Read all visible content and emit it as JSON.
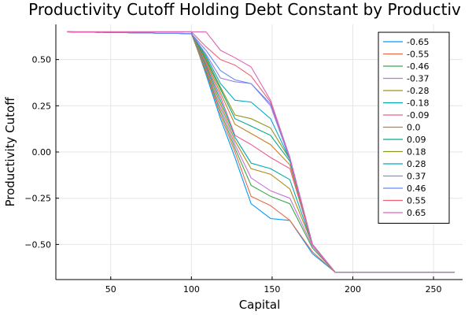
{
  "chart_data": {
    "type": "line",
    "title": "Productivity Cutoff Holding Debt Constant by Productiv",
    "xlabel": "Capital",
    "ylabel": "Productivity Cutoff",
    "xlim": [
      16,
      268
    ],
    "ylim": [
      -0.69,
      0.69
    ],
    "xticks": [
      50,
      100,
      150,
      200,
      250
    ],
    "yticks": [
      -0.5,
      -0.25,
      0.0,
      0.25,
      0.5
    ],
    "xtick_labels": [
      "50",
      "100",
      "150",
      "200",
      "250"
    ],
    "ytick_labels": [
      "−0.50",
      "−0.25",
      "0.00",
      "0.25",
      "0.50"
    ],
    "grid": true,
    "legend_position": "top-right",
    "x": [
      23,
      100,
      109,
      118,
      127,
      137,
      149,
      161,
      175,
      189,
      204,
      221,
      241,
      263
    ],
    "series": [
      {
        "name": "-0.65",
        "color": "#009AFA",
        "values": [
          0.65,
          0.65,
          0.42,
          0.18,
          -0.03,
          -0.28,
          -0.36,
          -0.37,
          -0.55,
          -0.65,
          -0.65,
          -0.65,
          -0.65,
          -0.65
        ]
      },
      {
        "name": "-0.55",
        "color": "#E36F47",
        "values": [
          0.65,
          0.64,
          0.43,
          0.2,
          0.0,
          -0.24,
          -0.29,
          -0.37,
          -0.54,
          -0.65,
          -0.65,
          -0.65,
          -0.65,
          -0.65
        ]
      },
      {
        "name": "-0.46",
        "color": "#3EA44E",
        "values": [
          0.65,
          0.64,
          0.44,
          0.22,
          0.02,
          -0.18,
          -0.24,
          -0.28,
          -0.52,
          -0.65,
          -0.65,
          -0.65,
          -0.65,
          -0.65
        ]
      },
      {
        "name": "-0.37",
        "color": "#C371D2",
        "values": [
          0.65,
          0.64,
          0.45,
          0.24,
          0.04,
          -0.14,
          -0.21,
          -0.25,
          -0.51,
          -0.65,
          -0.65,
          -0.65,
          -0.65,
          -0.65
        ]
      },
      {
        "name": "-0.28",
        "color": "#AC8D18",
        "values": [
          0.65,
          0.64,
          0.46,
          0.26,
          0.06,
          -0.09,
          -0.12,
          -0.2,
          -0.5,
          -0.65,
          -0.65,
          -0.65,
          -0.65,
          -0.65
        ]
      },
      {
        "name": "-0.18",
        "color": "#00A9AD",
        "values": [
          0.65,
          0.64,
          0.47,
          0.28,
          0.08,
          -0.06,
          -0.09,
          -0.15,
          -0.5,
          -0.65,
          -0.65,
          -0.65,
          -0.65,
          -0.65
        ]
      },
      {
        "name": "-0.09",
        "color": "#ED5E93",
        "values": [
          0.65,
          0.64,
          0.48,
          0.3,
          0.09,
          0.04,
          -0.03,
          -0.09,
          -0.5,
          -0.65,
          -0.65,
          -0.65,
          -0.65,
          -0.65
        ]
      },
      {
        "name": "0.0",
        "color": "#C68225",
        "values": [
          0.65,
          0.64,
          0.49,
          0.32,
          0.15,
          0.1,
          0.04,
          -0.07,
          -0.5,
          -0.65,
          -0.65,
          -0.65,
          -0.65,
          -0.65
        ]
      },
      {
        "name": "0.09",
        "color": "#00A98D",
        "values": [
          0.65,
          0.64,
          0.5,
          0.34,
          0.18,
          0.14,
          0.09,
          -0.05,
          -0.5,
          -0.65,
          -0.65,
          -0.65,
          -0.65,
          -0.65
        ]
      },
      {
        "name": "0.18",
        "color": "#8E971D",
        "values": [
          0.65,
          0.64,
          0.51,
          0.35,
          0.2,
          0.18,
          0.13,
          -0.04,
          -0.5,
          -0.65,
          -0.65,
          -0.65,
          -0.65,
          -0.65
        ]
      },
      {
        "name": "0.28",
        "color": "#00A8CB",
        "values": [
          0.65,
          0.64,
          0.52,
          0.37,
          0.28,
          0.27,
          0.18,
          -0.04,
          -0.5,
          -0.65,
          -0.65,
          -0.65,
          -0.65,
          -0.65
        ]
      },
      {
        "name": "0.37",
        "color": "#9B7FE9",
        "values": [
          0.65,
          0.64,
          0.53,
          0.4,
          0.38,
          0.37,
          0.25,
          -0.04,
          -0.5,
          -0.65,
          -0.65,
          -0.65,
          -0.65,
          -0.65
        ]
      },
      {
        "name": "0.46",
        "color": "#618DF6",
        "values": [
          0.65,
          0.64,
          0.55,
          0.44,
          0.39,
          0.37,
          0.26,
          -0.04,
          -0.5,
          -0.65,
          -0.65,
          -0.65,
          -0.65,
          -0.65
        ]
      },
      {
        "name": "0.55",
        "color": "#F06179",
        "values": [
          0.65,
          0.65,
          0.57,
          0.5,
          0.47,
          0.41,
          0.27,
          -0.03,
          -0.5,
          -0.65,
          -0.65,
          -0.65,
          -0.65,
          -0.65
        ]
      },
      {
        "name": "0.65",
        "color": "#DD64B5",
        "values": [
          0.65,
          0.65,
          0.65,
          0.55,
          0.51,
          0.46,
          0.28,
          -0.03,
          -0.5,
          -0.65,
          -0.65,
          -0.65,
          -0.65,
          -0.65
        ]
      }
    ]
  }
}
